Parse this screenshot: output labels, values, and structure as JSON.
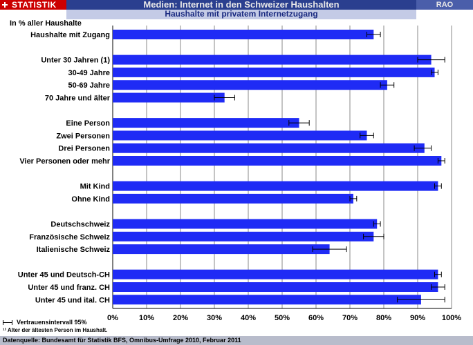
{
  "header": {
    "brand": "STATISTIK",
    "title": "Medien: Internet in den Schweizer Haushalten",
    "subtitle": "Haushalte mit privatem Internetzugang",
    "rao": "RAO"
  },
  "unit_label": "In % aller Haushalte",
  "legend": {
    "ci": "Vertrauensintervall 95%",
    "footnote": "¹⁾ Alter der ältesten Person im Haushalt."
  },
  "source": "Datenquelle: Bundesamt für Statistik BFS, Omnibus-Umfrage 2010, Februar 2011",
  "colors": {
    "bar": "#1f2bf5",
    "header_bg": "#2a3f8f",
    "brand_bg": "#cc0000"
  },
  "chart_data": {
    "type": "bar",
    "orientation": "horizontal",
    "title": "Haushalte mit privatem Internetzugang",
    "xlabel": "In % aller Haushalte",
    "xlim": [
      0,
      100
    ],
    "x_ticks": [
      "0%",
      "10%",
      "20%",
      "30%",
      "40%",
      "50%",
      "60%",
      "70%",
      "80%",
      "90%",
      "100%"
    ],
    "grid": true,
    "categories": [
      "Haushalte mit Zugang",
      "Unter 30 Jahren (1)",
      "30-49 Jahre",
      "50-69 Jahre",
      "70 Jahre und älter",
      "Eine Person",
      "Zwei Personen",
      "Drei Personen",
      "Vier Personen oder mehr",
      "Mit Kind",
      "Ohne Kind",
      "Deutschschweiz",
      "Französische Schweiz",
      "Italienische Schweiz",
      "Unter 45 und Deutsch-CH",
      "Unter 45 und franz. CH",
      "Unter 45 und ital. CH"
    ],
    "groups": [
      0,
      1,
      1,
      1,
      1,
      2,
      2,
      2,
      2,
      3,
      3,
      4,
      4,
      4,
      5,
      5,
      5
    ],
    "values": [
      77,
      94,
      95,
      81,
      33,
      55,
      75,
      92,
      97,
      96,
      71,
      78,
      77,
      64,
      96,
      96,
      91
    ],
    "ci_low": [
      75,
      90,
      94,
      79,
      30,
      52,
      73,
      89,
      96,
      95,
      70,
      77,
      74,
      59,
      95,
      94,
      84
    ],
    "ci_high": [
      79,
      98,
      96,
      83,
      36,
      58,
      77,
      94,
      98,
      97,
      72,
      79,
      80,
      69,
      97,
      98,
      98
    ]
  }
}
